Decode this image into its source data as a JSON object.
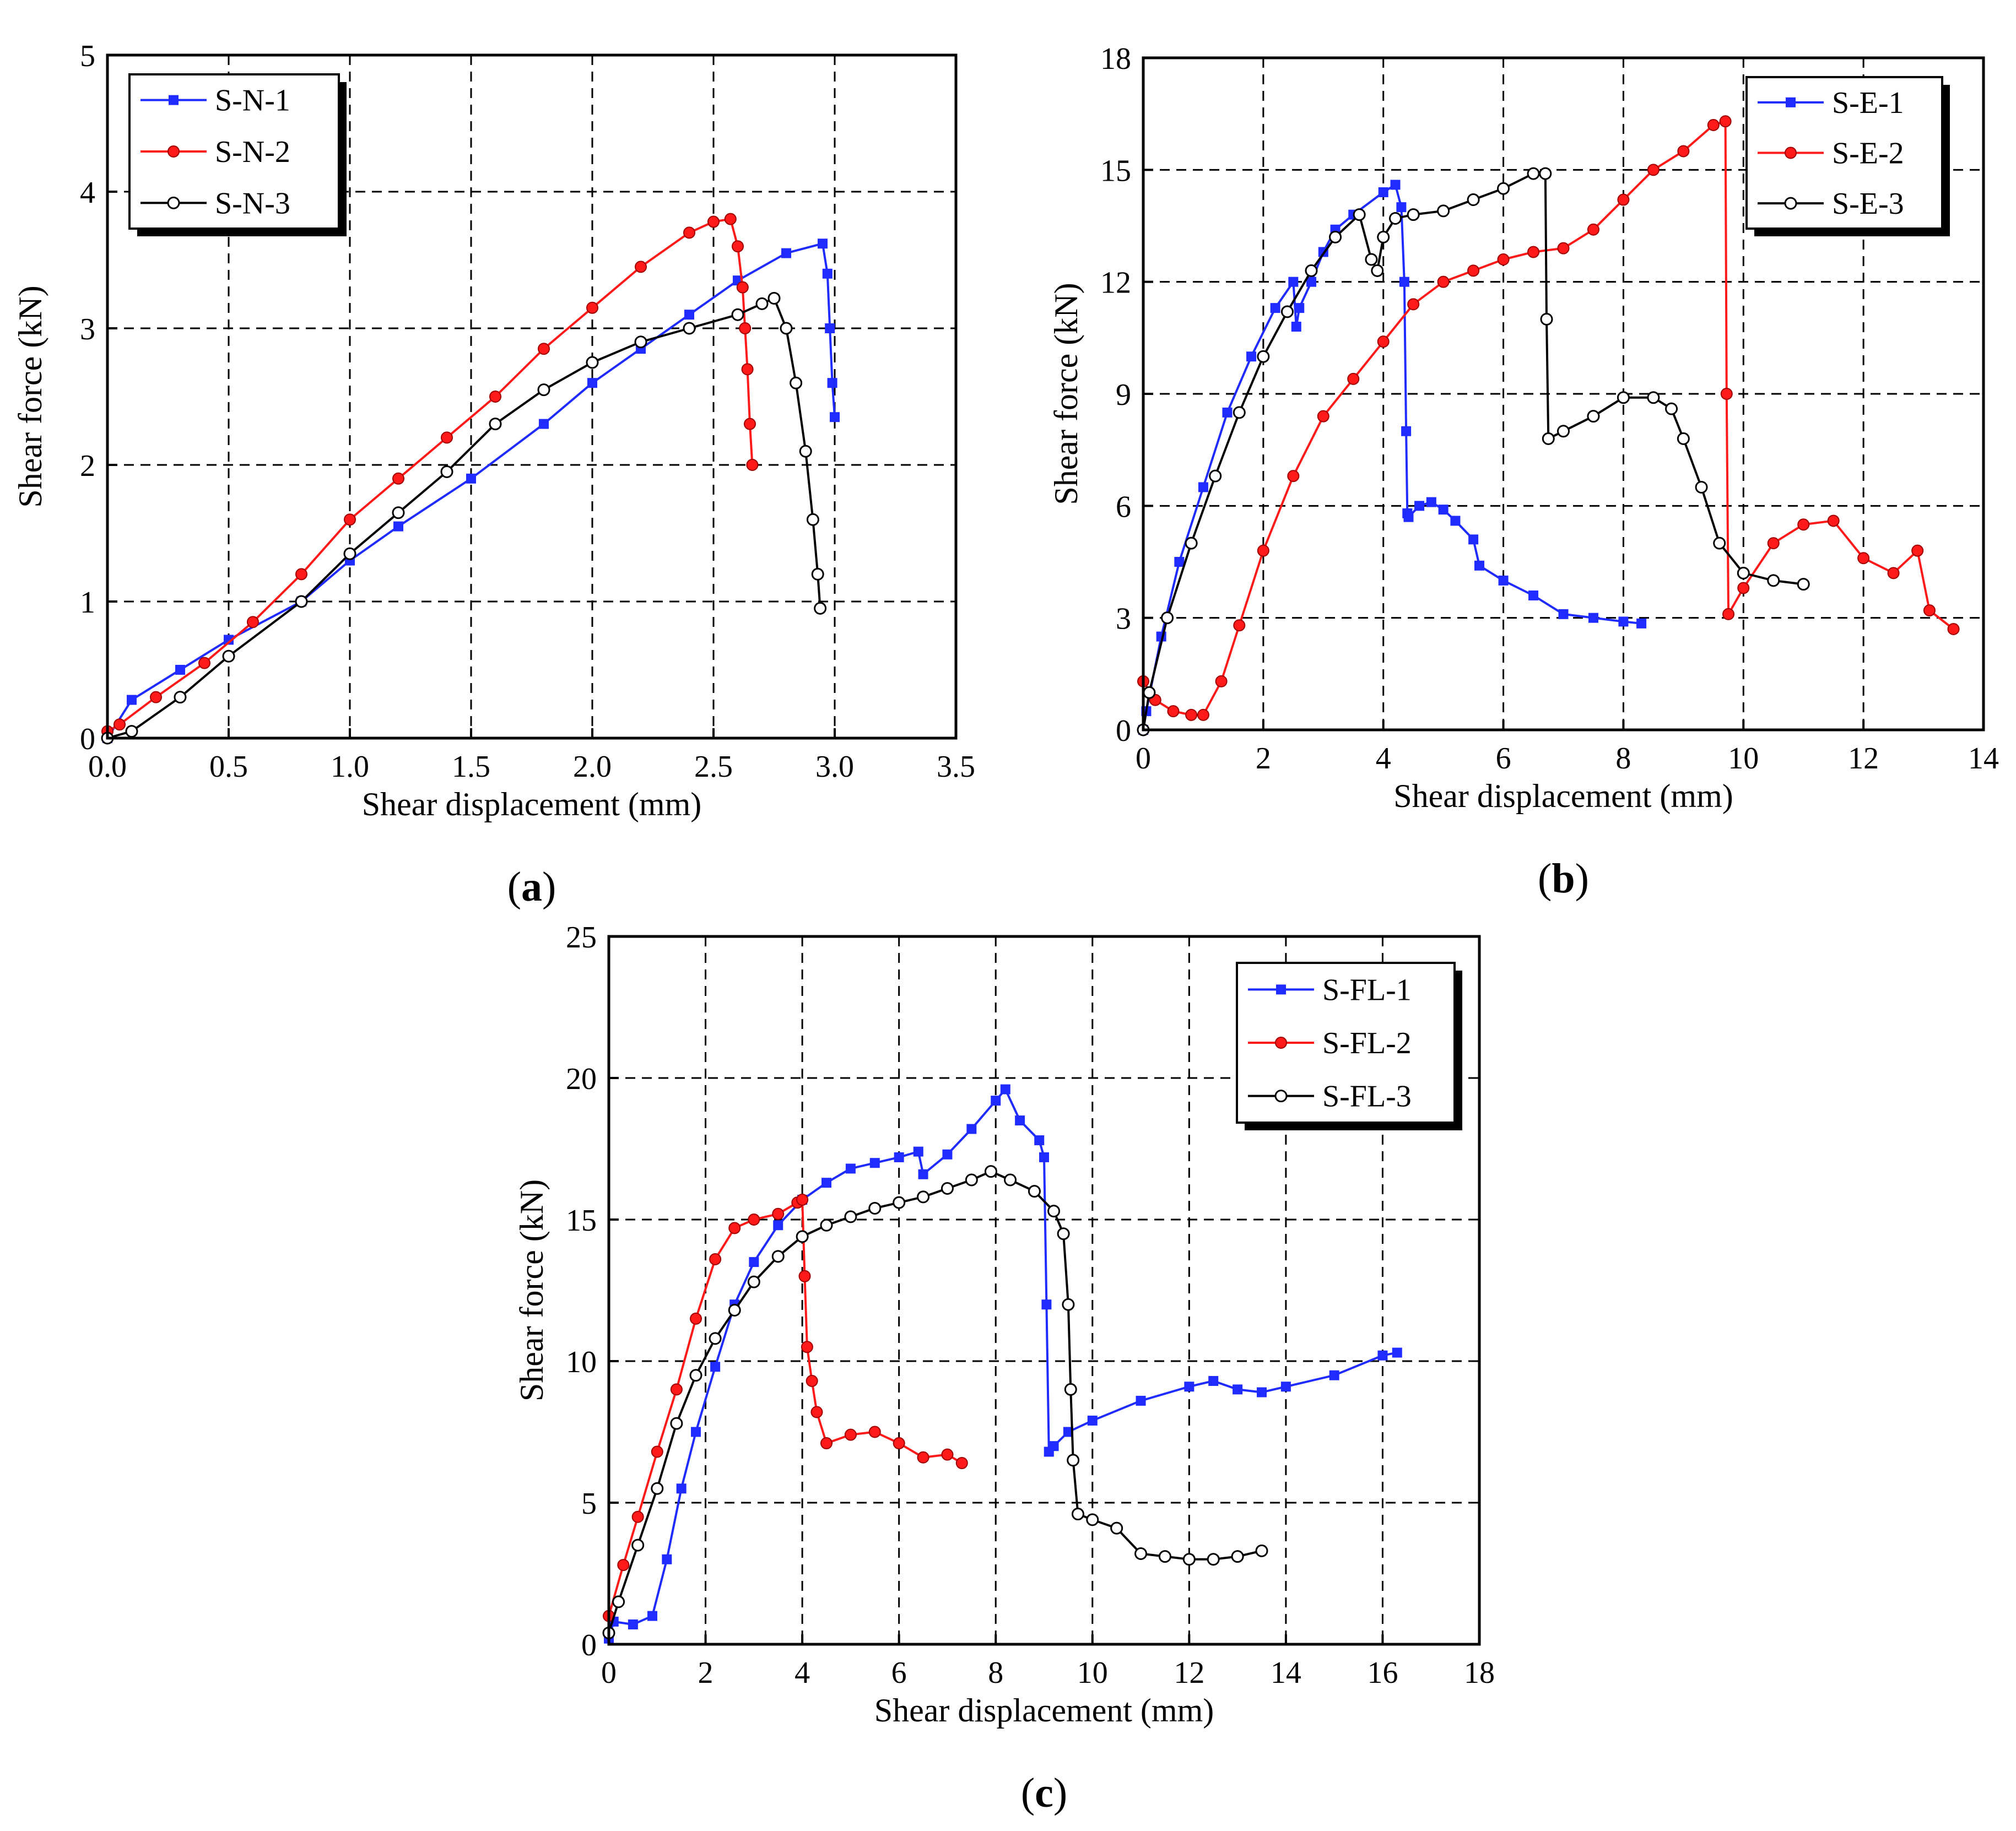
{
  "figure": {
    "colors": {
      "blue": "#1f2bff",
      "red": "#ff1a1a",
      "black": "#000000"
    }
  },
  "chart_data": [
    {
      "id": "a",
      "type": "line",
      "caption": "(a)",
      "caption_letter": "a",
      "xlabel": "Shear displacement (mm)",
      "ylabel": "Shear force (kN)",
      "xlim": [
        0,
        3.5
      ],
      "ylim": [
        0,
        5
      ],
      "xticks": [
        0,
        0.5,
        1,
        1.5,
        2,
        2.5,
        3,
        3.5
      ],
      "xtick_labels": [
        "0.0",
        "0.5",
        "1.0",
        "1.5",
        "2.0",
        "2.5",
        "3.0",
        "3.5"
      ],
      "yticks": [
        0,
        1,
        2,
        3,
        4,
        5
      ],
      "ytick_labels": [
        "0",
        "1",
        "2",
        "3",
        "4",
        "5"
      ],
      "grid": true,
      "legend_position": "top-left",
      "series": [
        {
          "name": "S-N-1",
          "color": "#1f2bff",
          "marker": "square",
          "x": [
            0,
            0.1,
            0.3,
            0.5,
            0.8,
            1.0,
            1.2,
            1.5,
            1.8,
            2.0,
            2.2,
            2.4,
            2.6,
            2.8,
            2.95,
            2.97,
            2.98,
            2.99,
            3.0
          ],
          "y": [
            0,
            0.28,
            0.5,
            0.72,
            1.0,
            1.3,
            1.55,
            1.9,
            2.3,
            2.6,
            2.85,
            3.1,
            3.35,
            3.55,
            3.62,
            3.4,
            3.0,
            2.6,
            2.35
          ]
        },
        {
          "name": "S-N-2",
          "color": "#ff1a1a",
          "marker": "circle-filled",
          "x": [
            0,
            0.05,
            0.2,
            0.4,
            0.6,
            0.8,
            1.0,
            1.2,
            1.4,
            1.6,
            1.8,
            2.0,
            2.2,
            2.4,
            2.5,
            2.57,
            2.6,
            2.62,
            2.63,
            2.64,
            2.65,
            2.66
          ],
          "y": [
            0.05,
            0.1,
            0.3,
            0.55,
            0.85,
            1.2,
            1.6,
            1.9,
            2.2,
            2.5,
            2.85,
            3.15,
            3.45,
            3.7,
            3.78,
            3.8,
            3.6,
            3.3,
            3.0,
            2.7,
            2.3,
            2.0
          ]
        },
        {
          "name": "S-N-3",
          "color": "#000000",
          "marker": "circle-open",
          "x": [
            0,
            0.1,
            0.3,
            0.5,
            0.8,
            1.0,
            1.2,
            1.4,
            1.6,
            1.8,
            2.0,
            2.2,
            2.4,
            2.6,
            2.7,
            2.75,
            2.8,
            2.84,
            2.88,
            2.91,
            2.93,
            2.94
          ],
          "y": [
            0,
            0.05,
            0.3,
            0.6,
            1.0,
            1.35,
            1.65,
            1.95,
            2.3,
            2.55,
            2.75,
            2.9,
            3.0,
            3.1,
            3.18,
            3.22,
            3.0,
            2.6,
            2.1,
            1.6,
            1.2,
            0.95
          ]
        }
      ]
    },
    {
      "id": "b",
      "type": "line",
      "caption": "(b)",
      "caption_letter": "b",
      "xlabel": "Shear displacement (mm)",
      "ylabel": "Shear force (kN)",
      "xlim": [
        0,
        14
      ],
      "ylim": [
        0,
        18
      ],
      "xticks": [
        0,
        2,
        4,
        6,
        8,
        10,
        12,
        14
      ],
      "xtick_labels": [
        "0",
        "2",
        "4",
        "6",
        "8",
        "10",
        "12",
        "14"
      ],
      "yticks": [
        0,
        3,
        6,
        9,
        12,
        15,
        18
      ],
      "ytick_labels": [
        "0",
        "3",
        "6",
        "9",
        "12",
        "15",
        "18"
      ],
      "grid": true,
      "legend_position": "top-right",
      "series": [
        {
          "name": "S-E-1",
          "color": "#1f2bff",
          "marker": "square",
          "x": [
            0,
            0.05,
            0.3,
            0.6,
            1.0,
            1.4,
            1.8,
            2.2,
            2.5,
            2.55,
            2.6,
            2.8,
            3.0,
            3.2,
            3.5,
            4.0,
            4.2,
            4.3,
            4.35,
            4.38,
            4.4,
            4.42,
            4.6,
            4.8,
            5.0,
            5.2,
            5.5,
            5.6,
            6.0,
            6.5,
            7.0,
            7.5,
            8.0,
            8.3
          ],
          "y": [
            0,
            0.5,
            2.5,
            4.5,
            6.5,
            8.5,
            10.0,
            11.3,
            12.0,
            10.8,
            11.3,
            12.0,
            12.8,
            13.4,
            13.8,
            14.4,
            14.6,
            14.0,
            12.0,
            8.0,
            5.8,
            5.7,
            6.0,
            6.1,
            5.9,
            5.6,
            5.1,
            4.4,
            4.0,
            3.6,
            3.1,
            3.0,
            2.9,
            2.85
          ]
        },
        {
          "name": "S-E-2",
          "color": "#ff1a1a",
          "marker": "circle-filled",
          "x": [
            0,
            0.2,
            0.5,
            0.8,
            1.0,
            1.3,
            1.6,
            2.0,
            2.5,
            3.0,
            3.5,
            4.0,
            4.5,
            5.0,
            5.5,
            6.0,
            6.5,
            7.0,
            7.5,
            8.0,
            8.5,
            9.0,
            9.5,
            9.7,
            9.72,
            9.75,
            10.0,
            10.5,
            11.0,
            11.5,
            12.0,
            12.5,
            12.9,
            13.1,
            13.5
          ],
          "y": [
            1.3,
            0.8,
            0.5,
            0.4,
            0.4,
            1.3,
            2.8,
            4.8,
            6.8,
            8.4,
            9.4,
            10.4,
            11.4,
            12.0,
            12.3,
            12.6,
            12.8,
            12.9,
            13.4,
            14.2,
            15.0,
            15.5,
            16.2,
            16.3,
            9.0,
            3.1,
            3.8,
            5.0,
            5.5,
            5.6,
            4.6,
            4.2,
            4.8,
            3.2,
            2.7
          ]
        },
        {
          "name": "S-E-3",
          "color": "#000000",
          "marker": "circle-open",
          "x": [
            0,
            0.1,
            0.4,
            0.8,
            1.2,
            1.6,
            2.0,
            2.4,
            2.8,
            3.2,
            3.6,
            3.8,
            3.9,
            4.0,
            4.2,
            4.5,
            5.0,
            5.5,
            6.0,
            6.5,
            6.7,
            6.72,
            6.75,
            7.0,
            7.5,
            8.0,
            8.5,
            8.8,
            9.0,
            9.3,
            9.6,
            10.0,
            10.5,
            11.0
          ],
          "y": [
            0,
            1.0,
            3.0,
            5.0,
            6.8,
            8.5,
            10.0,
            11.2,
            12.3,
            13.2,
            13.8,
            12.6,
            12.3,
            13.2,
            13.7,
            13.8,
            13.9,
            14.2,
            14.5,
            14.9,
            14.9,
            11.0,
            7.8,
            8.0,
            8.4,
            8.9,
            8.9,
            8.6,
            7.8,
            6.5,
            5.0,
            4.2,
            4.0,
            3.9
          ]
        }
      ]
    },
    {
      "id": "c",
      "type": "line",
      "caption": "(c)",
      "caption_letter": "c",
      "xlabel": "Shear displacement (mm)",
      "ylabel": "Shear force (kN)",
      "xlim": [
        0,
        18
      ],
      "ylim": [
        0,
        25
      ],
      "xticks": [
        0,
        2,
        4,
        6,
        8,
        10,
        12,
        14,
        16,
        18
      ],
      "xtick_labels": [
        "0",
        "2",
        "4",
        "6",
        "8",
        "10",
        "12",
        "14",
        "16",
        "18"
      ],
      "yticks": [
        0,
        5,
        10,
        15,
        20,
        25
      ],
      "ytick_labels": [
        "0",
        "5",
        "10",
        "15",
        "20",
        "25"
      ],
      "grid": true,
      "legend_position": "top-right",
      "series": [
        {
          "name": "S-FL-1",
          "color": "#1f2bff",
          "marker": "square",
          "x": [
            0,
            0.1,
            0.5,
            0.9,
            1.2,
            1.5,
            1.8,
            2.2,
            2.6,
            3.0,
            3.5,
            4.0,
            4.5,
            5.0,
            5.5,
            6.0,
            6.4,
            6.5,
            7.0,
            7.5,
            8.0,
            8.2,
            8.5,
            8.9,
            9.0,
            9.05,
            9.1,
            9.2,
            9.5,
            10.0,
            11.0,
            12.0,
            12.5,
            13.0,
            13.5,
            14.0,
            15.0,
            16.0,
            16.3
          ],
          "y": [
            0.2,
            0.8,
            0.7,
            1.0,
            3.0,
            5.5,
            7.5,
            9.8,
            12.0,
            13.5,
            14.8,
            15.7,
            16.3,
            16.8,
            17.0,
            17.2,
            17.4,
            16.6,
            17.3,
            18.2,
            19.2,
            19.6,
            18.5,
            17.8,
            17.2,
            12.0,
            6.8,
            7.0,
            7.5,
            7.9,
            8.6,
            9.1,
            9.3,
            9.0,
            8.9,
            9.1,
            9.5,
            10.2,
            10.3
          ]
        },
        {
          "name": "S-FL-2",
          "color": "#ff1a1a",
          "marker": "circle-filled",
          "x": [
            0,
            0.3,
            0.6,
            1.0,
            1.4,
            1.8,
            2.2,
            2.6,
            3.0,
            3.5,
            3.9,
            4.0,
            4.05,
            4.1,
            4.2,
            4.3,
            4.5,
            5.0,
            5.5,
            6.0,
            6.5,
            7.0,
            7.3
          ],
          "y": [
            1.0,
            2.8,
            4.5,
            6.8,
            9.0,
            11.5,
            13.6,
            14.7,
            15.0,
            15.2,
            15.6,
            15.7,
            13.0,
            10.5,
            9.3,
            8.2,
            7.1,
            7.4,
            7.5,
            7.1,
            6.6,
            6.7,
            6.4
          ]
        },
        {
          "name": "S-FL-3",
          "color": "#000000",
          "marker": "circle-open",
          "x": [
            0,
            0.2,
            0.6,
            1.0,
            1.4,
            1.8,
            2.2,
            2.6,
            3.0,
            3.5,
            4.0,
            4.5,
            5.0,
            5.5,
            6.0,
            6.5,
            7.0,
            7.5,
            7.9,
            8.3,
            8.8,
            9.2,
            9.4,
            9.5,
            9.55,
            9.6,
            9.7,
            10.0,
            10.5,
            11.0,
            11.5,
            12.0,
            12.5,
            13.0,
            13.5
          ],
          "y": [
            0.4,
            1.5,
            3.5,
            5.5,
            7.8,
            9.5,
            10.8,
            11.8,
            12.8,
            13.7,
            14.4,
            14.8,
            15.1,
            15.4,
            15.6,
            15.8,
            16.1,
            16.4,
            16.7,
            16.4,
            16.0,
            15.3,
            14.5,
            12.0,
            9.0,
            6.5,
            4.6,
            4.4,
            4.1,
            3.2,
            3.1,
            3.0,
            3.0,
            3.1,
            3.3
          ]
        }
      ]
    }
  ]
}
